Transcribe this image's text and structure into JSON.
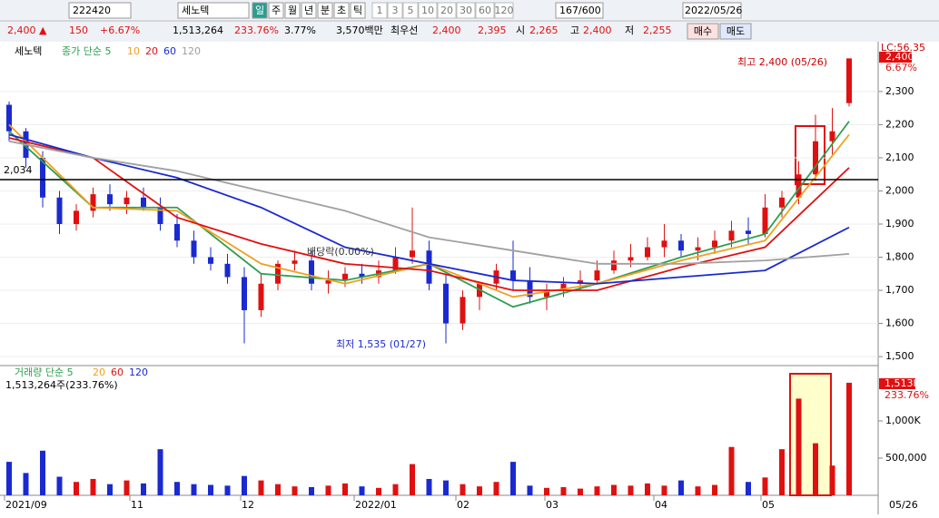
{
  "toolbar": {
    "code": "222420",
    "name": "세노텍",
    "periods": [
      "일",
      "주",
      "월",
      "년",
      "분",
      "초",
      "틱"
    ],
    "minutes": [
      "1",
      "3",
      "5",
      "10",
      "20",
      "30",
      "60",
      "120"
    ],
    "count": "167/600",
    "date": "2022/05/26"
  },
  "quote": {
    "price": "2,400 ▲",
    "change": "150",
    "rate": "+6.67%",
    "volume": "1,513,264",
    "vol_ratio": "233.76%",
    "turnover": "3.77%",
    "amount": "3,570백만",
    "best_label": "최우선",
    "ask": "2,400",
    "bid": "2,395",
    "open_label": "시",
    "open": "2,265",
    "high_label": "고",
    "high": "2,400",
    "low_label": "저",
    "low": "2,255",
    "buy": "매수",
    "sell": "매도"
  },
  "chart_data": [
    {
      "type": "candlestick",
      "legend": {
        "name": "세노텍",
        "ma_label": "종가 단순 5",
        "periods": [
          "10",
          "20",
          "60",
          "120"
        ]
      },
      "annotations": {
        "line_value": 2034,
        "line_label": "2,034",
        "dividend": "배당락(0.00%)",
        "max": "최고 2,400 (05/26)",
        "min": "최저 1,535 (01/27)",
        "lc": "LC:56.35",
        "last": "2,400",
        "last_rate": "6.67%"
      },
      "x_labels": [
        "2021/09",
        "11",
        "12",
        "2022/01",
        "02",
        "03",
        "04",
        "05",
        "05/26"
      ],
      "open": [
        2260,
        2180,
        2100,
        1980,
        1900,
        1940,
        1990,
        1960,
        1980,
        1950,
        1900,
        1850,
        1800,
        1780,
        1740,
        1640,
        1720,
        1780,
        1790,
        1720,
        1730,
        1750,
        1740,
        1760,
        1800,
        1820,
        1720,
        1600,
        1680,
        1720,
        1760,
        1730,
        1680,
        1700,
        1720,
        1730,
        1760,
        1790,
        1800,
        1830,
        1850,
        1820,
        1830,
        1850,
        1880,
        1870,
        1950,
        1980,
        2050,
        2150,
        2265
      ],
      "high": [
        2270,
        2190,
        2120,
        2000,
        1960,
        2010,
        2020,
        2000,
        2010,
        1980,
        1930,
        1880,
        1830,
        1810,
        1770,
        1750,
        1790,
        1820,
        1820,
        1760,
        1770,
        1780,
        1790,
        1830,
        1950,
        1850,
        1750,
        1700,
        1720,
        1780,
        1850,
        1770,
        1720,
        1740,
        1760,
        1790,
        1820,
        1840,
        1860,
        1900,
        1870,
        1860,
        1880,
        1910,
        1920,
        1990,
        2000,
        2090,
        2230,
        2250,
        2400
      ],
      "low": [
        2150,
        2070,
        1950,
        1870,
        1880,
        1920,
        1940,
        1930,
        1940,
        1880,
        1830,
        1780,
        1760,
        1720,
        1540,
        1620,
        1700,
        1760,
        1700,
        1690,
        1710,
        1720,
        1720,
        1750,
        1780,
        1700,
        1540,
        1580,
        1640,
        1700,
        1700,
        1660,
        1640,
        1680,
        1700,
        1720,
        1750,
        1770,
        1790,
        1800,
        1800,
        1790,
        1810,
        1830,
        1840,
        1860,
        1920,
        1960,
        2030,
        2110,
        2255
      ],
      "close": [
        2180,
        2100,
        1980,
        1900,
        1940,
        1990,
        1960,
        1980,
        1950,
        1900,
        1850,
        1800,
        1780,
        1740,
        1640,
        1720,
        1780,
        1790,
        1720,
        1730,
        1750,
        1740,
        1760,
        1800,
        1820,
        1720,
        1600,
        1680,
        1720,
        1760,
        1730,
        1680,
        1700,
        1720,
        1730,
        1760,
        1790,
        1800,
        1830,
        1850,
        1820,
        1830,
        1850,
        1880,
        1870,
        1950,
        1980,
        2050,
        2150,
        2180,
        2400
      ],
      "series": [
        {
          "name": "5",
          "color": "#2e9e4f",
          "values": [
            2180,
            1950,
            1950,
            1750,
            1730,
            1780,
            1650,
            1720,
            1800,
            1870,
            2210
          ]
        },
        {
          "name": "10",
          "color": "#f0a020",
          "values": [
            2200,
            1950,
            1940,
            1780,
            1720,
            1780,
            1680,
            1720,
            1790,
            1850,
            2170
          ]
        },
        {
          "name": "20",
          "color": "#e01010",
          "values": [
            2160,
            2100,
            1920,
            1840,
            1780,
            1760,
            1700,
            1700,
            1770,
            1830,
            2070
          ]
        },
        {
          "name": "60",
          "color": "#1a2ad0",
          "values": [
            2170,
            2100,
            2040,
            1950,
            1830,
            1780,
            1730,
            1720,
            1740,
            1760,
            1890
          ]
        },
        {
          "name": "120",
          "color": "#a0a0a0",
          "values": [
            2150,
            2100,
            2060,
            2000,
            1940,
            1860,
            1820,
            1780,
            1780,
            1790,
            1810
          ]
        }
      ],
      "ylim": [
        1481,
        2412
      ],
      "yticks": [
        {
          "value": 1500,
          "label": "1,500"
        },
        {
          "value": 1600,
          "label": "1,600"
        },
        {
          "value": 1700,
          "label": "1,700"
        },
        {
          "value": 1800,
          "label": "1,800"
        },
        {
          "value": 1900,
          "label": "1,900"
        },
        {
          "value": 2000,
          "label": "2,000"
        },
        {
          "value": 2100,
          "label": "2,100"
        },
        {
          "value": 2200,
          "label": "2,200"
        },
        {
          "value": 2300,
          "label": "2,300"
        }
      ]
    },
    {
      "type": "bar",
      "legend": {
        "name": "거래량 단순 5",
        "periods": [
          "20",
          "60",
          "120"
        ]
      },
      "info": "1,513,264주(233.76%)",
      "last": "1,513K",
      "last_rate": "233.76%",
      "values": [
        450000,
        300000,
        600000,
        250000,
        180000,
        220000,
        150000,
        200000,
        160000,
        620000,
        180000,
        150000,
        140000,
        130000,
        260000,
        200000,
        150000,
        120000,
        110000,
        130000,
        160000,
        120000,
        100000,
        150000,
        420000,
        220000,
        200000,
        150000,
        120000,
        180000,
        450000,
        130000,
        100000,
        110000,
        90000,
        120000,
        140000,
        130000,
        160000,
        130000,
        200000,
        120000,
        140000,
        650000,
        180000,
        240000,
        620000,
        1300000,
        700000,
        400000,
        1513264
      ],
      "ylim": [
        0,
        1561000
      ],
      "yticks": [
        {
          "value": 500000,
          "label": "500,000"
        },
        {
          "value": 1000000,
          "label": "1,000K"
        }
      ]
    }
  ]
}
